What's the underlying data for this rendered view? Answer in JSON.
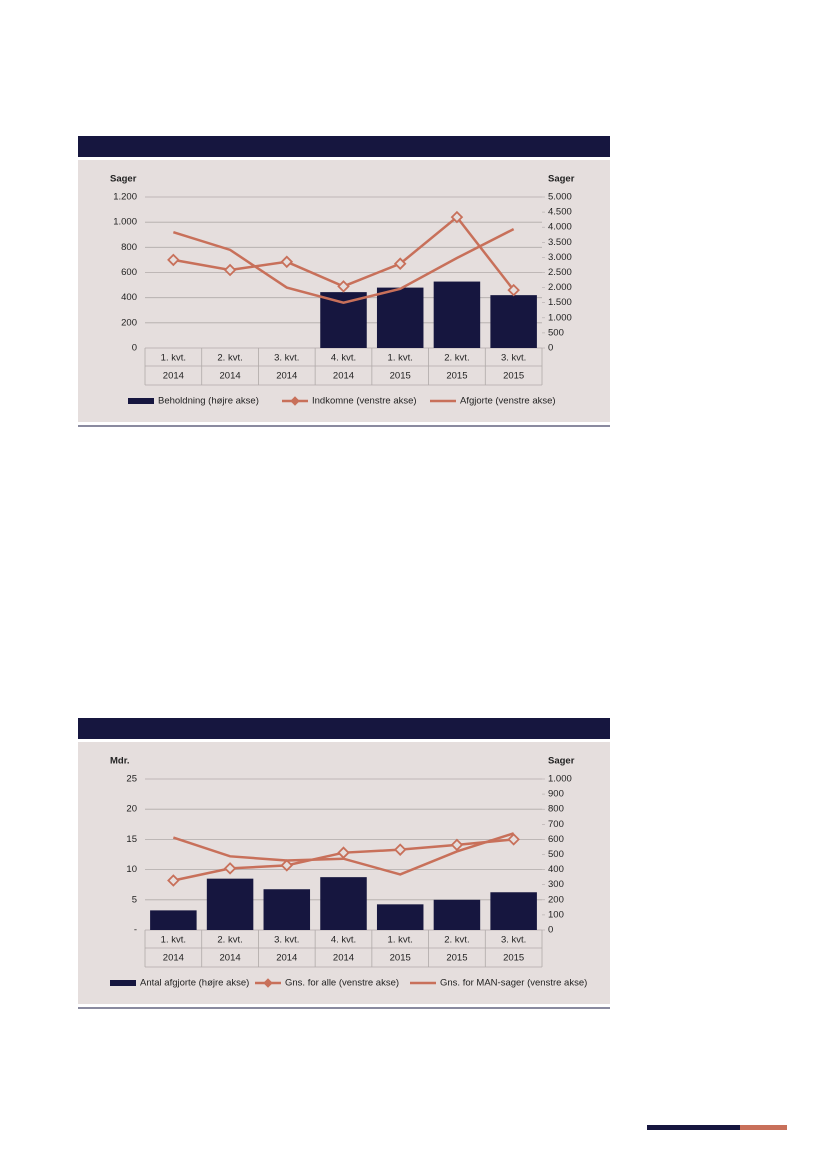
{
  "chart_data": [
    {
      "type": "bar_line",
      "categories": [
        [
          "1. kvt.",
          "2014"
        ],
        [
          "2. kvt.",
          "2014"
        ],
        [
          "3. kvt.",
          "2014"
        ],
        [
          "4. kvt.",
          "2014"
        ],
        [
          "1. kvt.",
          "2015"
        ],
        [
          "2. kvt.",
          "2015"
        ],
        [
          "3. kvt.",
          "2015"
        ]
      ],
      "y_label": "Sager",
      "y2_label": "Sager",
      "ylim": [
        0,
        1200
      ],
      "yticks": [
        0,
        200,
        400,
        600,
        800,
        {
          "value": 1000,
          "label": "1.000"
        },
        {
          "value": 1200,
          "label": "1.200"
        }
      ],
      "y2lim": [
        0,
        5000
      ],
      "y2ticks": [
        0,
        500,
        {
          "value": 1000,
          "label": "1.000"
        },
        {
          "value": 1500,
          "label": "1.500"
        },
        {
          "value": 2000,
          "label": "2.000"
        },
        {
          "value": 2500,
          "label": "2.500"
        },
        {
          "value": 3000,
          "label": "3.000"
        },
        {
          "value": 3500,
          "label": "3.500"
        },
        {
          "value": 4000,
          "label": "4.000"
        },
        {
          "value": 4500,
          "label": "4.500"
        },
        {
          "value": 5000,
          "label": "5.000"
        }
      ],
      "grid": true,
      "series": [
        {
          "name": "Beholdning (højre akse)",
          "type": "bar",
          "axis": "y2",
          "color": "#16163f",
          "values": [
            null,
            null,
            null,
            1850,
            2000,
            2200,
            1750
          ]
        },
        {
          "name": "Indkomne (venstre akse)",
          "type": "line",
          "marker": "diamond",
          "color": "#c8705a",
          "values": [
            700,
            620,
            685,
            490,
            670,
            1040,
            460
          ]
        },
        {
          "name": "Afgjorte (venstre akse)",
          "type": "line",
          "color": "#c8705a",
          "values": [
            920,
            780,
            480,
            360,
            470,
            715,
            945
          ]
        }
      ]
    },
    {
      "type": "bar_line",
      "categories": [
        [
          "1. kvt.",
          "2014"
        ],
        [
          "2. kvt.",
          "2014"
        ],
        [
          "3. kvt.",
          "2014"
        ],
        [
          "4. kvt.",
          "2014"
        ],
        [
          "1. kvt.",
          "2015"
        ],
        [
          "2. kvt.",
          "2015"
        ],
        [
          "3. kvt.",
          "2015"
        ]
      ],
      "y_label": "Mdr.",
      "y2_label": "Sager",
      "ylim": [
        0,
        25
      ],
      "yticks": [
        {
          "value": 0,
          "label": "-"
        },
        5,
        10,
        15,
        20,
        25
      ],
      "y2lim": [
        0,
        1000
      ],
      "y2ticks": [
        0,
        100,
        200,
        300,
        400,
        500,
        600,
        700,
        800,
        900,
        {
          "value": 1000,
          "label": "1.000"
        }
      ],
      "grid": true,
      "series": [
        {
          "name": "Antal afgjorte (højre akse)",
          "type": "bar",
          "axis": "y2",
          "color": "#16163f",
          "values": [
            130,
            340,
            270,
            350,
            170,
            200,
            250
          ]
        },
        {
          "name": "Gns. for alle (venstre akse)",
          "type": "line",
          "marker": "diamond",
          "color": "#c8705a",
          "values": [
            8.2,
            10.2,
            10.7,
            12.8,
            13.3,
            14.1,
            15.0
          ]
        },
        {
          "name": "Gns. for MAN-sager (venstre akse)",
          "type": "line",
          "color": "#c8705a",
          "values": [
            15.3,
            12.2,
            11.5,
            11.8,
            9.2,
            13.0,
            16.0
          ]
        }
      ]
    }
  ]
}
